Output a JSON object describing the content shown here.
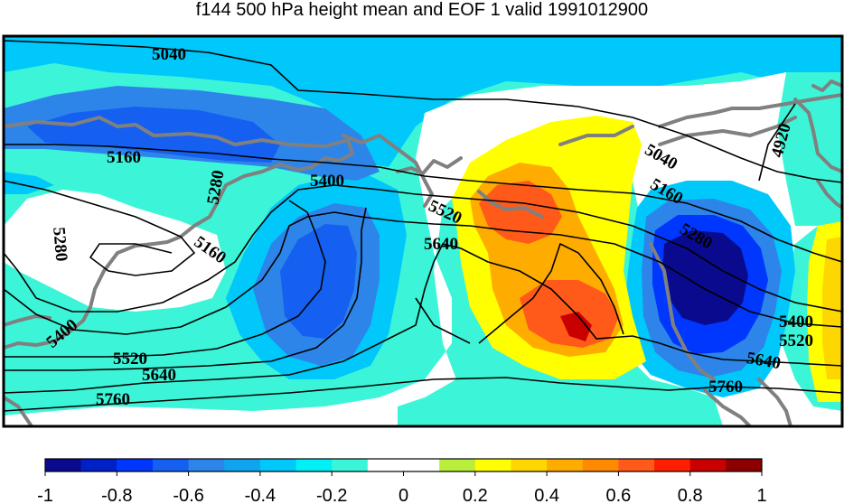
{
  "title": "f144 500 hPa height mean and EOF 1 valid 1991012900",
  "chart_data": {
    "type": "contour-map",
    "title": "f144 500 hPa height mean and EOF 1 valid 1991012900",
    "fill_variable": "EOF 1",
    "line_variable": "500 hPa height mean",
    "colorbar": {
      "min": -1,
      "max": 1,
      "step": 0.1,
      "tick_labels": [
        "-1",
        "-0.8",
        "-0.6",
        "-0.4",
        "-0.2",
        "0",
        "0.2",
        "0.4",
        "0.6",
        "0.8",
        "1"
      ],
      "colors": [
        "#0a0a8f",
        "#0020c8",
        "#0037ff",
        "#1560f0",
        "#2d85ea",
        "#0fa5ee",
        "#00c8fa",
        "#00f0f5",
        "#3cf5d8",
        "#ffffff",
        "#ffffff",
        "#b9ee3c",
        "#ffff00",
        "#ffd700",
        "#ffac00",
        "#ff8a00",
        "#ff5a1a",
        "#ff1e00",
        "#c80000",
        "#8c0000"
      ]
    },
    "contour_levels": [
      4920,
      5040,
      5160,
      5280,
      5400,
      5520,
      5640,
      5760
    ],
    "contour_labels": [
      "5040",
      "5160",
      "5280",
      "5280",
      "5160",
      "5400",
      "5400",
      "5520",
      "5520",
      "5640",
      "5640",
      "5760",
      "5040",
      "5160",
      "5280",
      "5400",
      "5520",
      "5640",
      "5760",
      "4920"
    ],
    "anomaly_centers": [
      {
        "sign": "negative",
        "peak": -0.7,
        "region": "far west"
      },
      {
        "sign": "negative",
        "peak": -0.6,
        "region": "central-west"
      },
      {
        "sign": "positive",
        "peak": 0.8,
        "region": "center-east"
      },
      {
        "sign": "negative",
        "peak": -0.9,
        "region": "east"
      },
      {
        "sign": "positive",
        "peak": 0.3,
        "region": "far east edge"
      }
    ]
  }
}
